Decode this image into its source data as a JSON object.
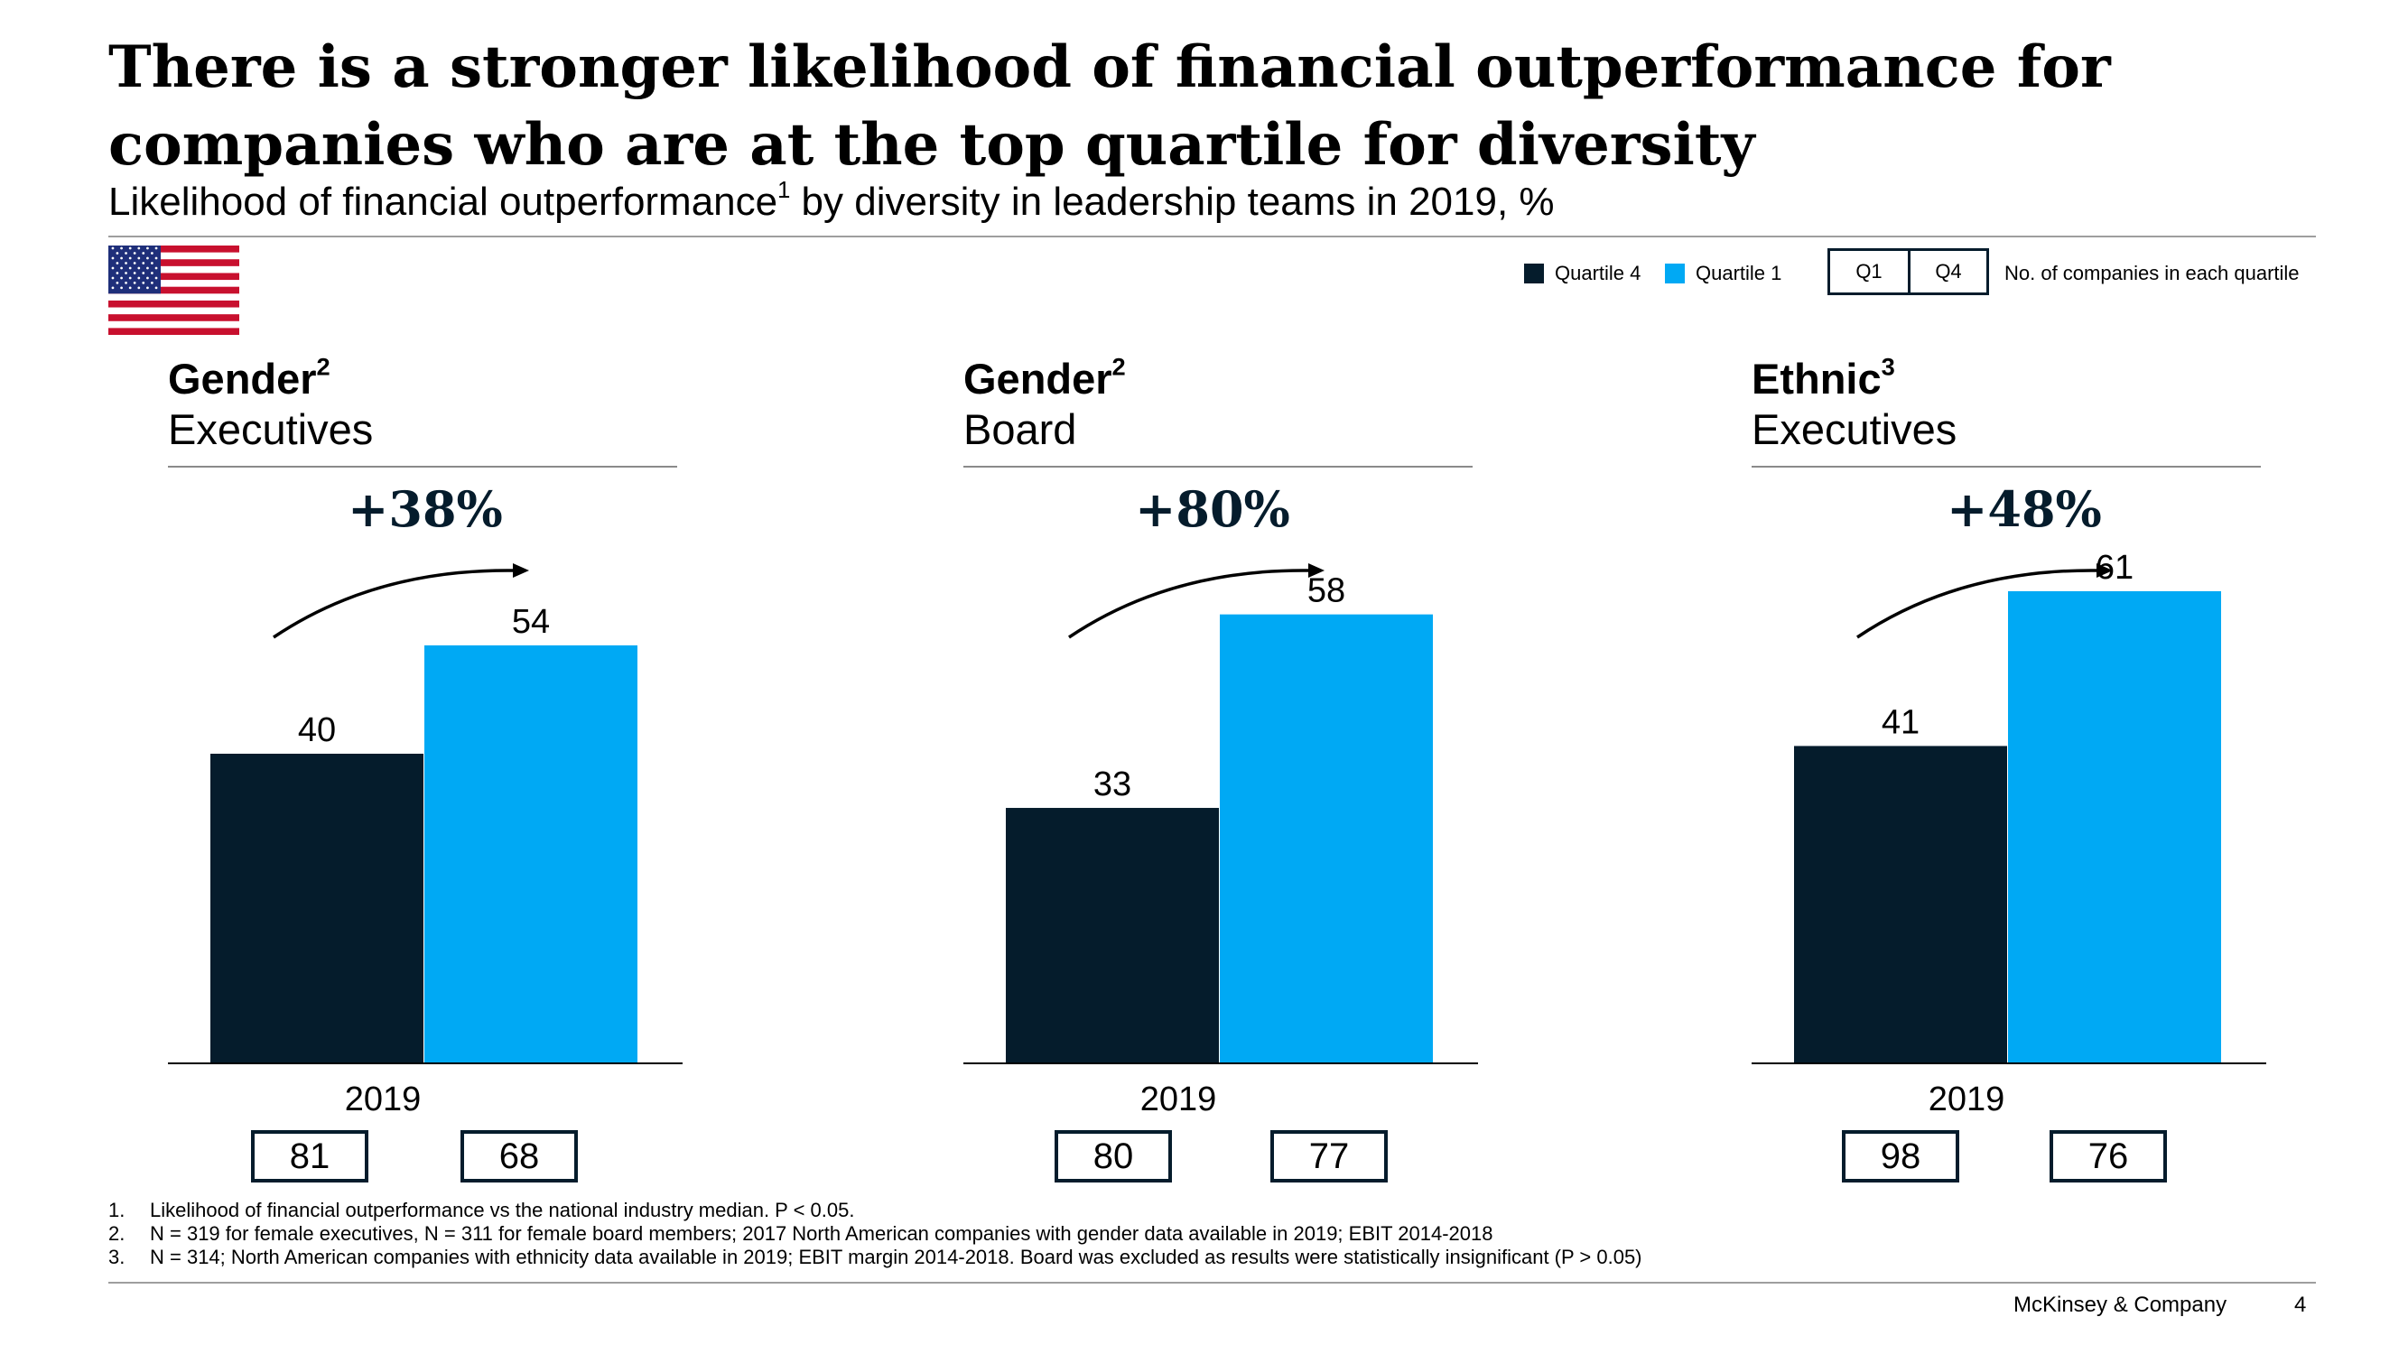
{
  "header": {
    "title_line1": "There is a stronger likelihood of financial outperformance for",
    "title_line2": "companies who are at the top quartile for diversity",
    "subtitle_pre": "Likelihood of financial outperformance",
    "subtitle_sup": "1",
    "subtitle_post": " by diversity in leadership teams in 2019, %"
  },
  "flag_icon": "us-flag-icon",
  "legend": {
    "quartile4_label": "Quartile 4",
    "quartile1_label": "Quartile 1",
    "q1_box": "Q1",
    "q4_box": "Q4",
    "note": "No. of companies in each quartile"
  },
  "colors": {
    "quartile4": "#051c2c",
    "quartile1": "#00a9f4",
    "text": "#000000",
    "rule": "#9e9e9e"
  },
  "panels": [
    {
      "metric": "Gender",
      "metric_sup": "2",
      "group": "Executives",
      "change": "+38%",
      "year": "2019",
      "count_q1": "81",
      "count_q4": "68"
    },
    {
      "metric": "Gender",
      "metric_sup": "2",
      "group": "Board",
      "change": "+80%",
      "year": "2019",
      "count_q1": "80",
      "count_q4": "77"
    },
    {
      "metric": "Ethnic",
      "metric_sup": "3",
      "group": "Executives",
      "change": "+48%",
      "year": "2019",
      "count_q1": "98",
      "count_q4": "76"
    }
  ],
  "chart_data": [
    {
      "type": "bar",
      "title": "Gender Executives",
      "categories": [
        "2019"
      ],
      "ylim": [
        0,
        80
      ],
      "series": [
        {
          "name": "Quartile 4",
          "values": [
            40
          ]
        },
        {
          "name": "Quartile 1",
          "values": [
            54
          ]
        }
      ]
    },
    {
      "type": "bar",
      "title": "Gender Board",
      "categories": [
        "2019"
      ],
      "ylim": [
        0,
        80
      ],
      "series": [
        {
          "name": "Quartile 4",
          "values": [
            33
          ]
        },
        {
          "name": "Quartile 1",
          "values": [
            58
          ]
        }
      ]
    },
    {
      "type": "bar",
      "title": "Ethnic Executives",
      "categories": [
        "2019"
      ],
      "ylim": [
        0,
        80
      ],
      "series": [
        {
          "name": "Quartile 4",
          "values": [
            41
          ]
        },
        {
          "name": "Quartile 1",
          "values": [
            61
          ]
        }
      ]
    }
  ],
  "footnotes": [
    {
      "num": "1.",
      "text": "Likelihood of financial outperformance vs the national industry median. P < 0.05."
    },
    {
      "num": "2.",
      "text": "N = 319 for female executives, N = 311 for female board members; 2017 North American companies with gender data available in 2019; EBIT 2014-2018"
    },
    {
      "num": "3.",
      "text": "N = 314; North American companies with ethnicity data available in 2019; EBIT margin 2014-2018. Board was excluded as results were statistically insignificant (P > 0.05)"
    }
  ],
  "footer": {
    "brand": "McKinsey & Company",
    "page": "4"
  }
}
